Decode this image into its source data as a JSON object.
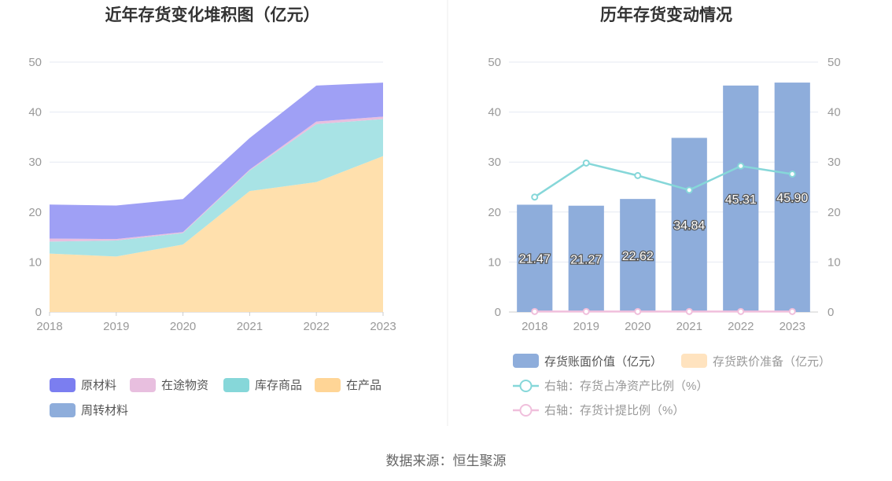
{
  "source_text": "数据来源：恒生聚源",
  "chart_data": [
    {
      "type": "area",
      "stacked": true,
      "title": "近年存货变化堆积图（亿元）",
      "categories": [
        "2018",
        "2019",
        "2020",
        "2021",
        "2022",
        "2023"
      ],
      "ylim": [
        0,
        50
      ],
      "yticks": [
        "0",
        "10",
        "20",
        "30",
        "40",
        "50"
      ],
      "grid": true,
      "legend_position": "bottom",
      "series": [
        {
          "name": "在产品",
          "color": "#ffe0ad",
          "values": [
            11.7,
            11.1,
            13.5,
            24.2,
            26.0,
            31.2
          ]
        },
        {
          "name": "库存商品",
          "color": "#a8e3e5",
          "values": [
            2.4,
            3.2,
            2.3,
            4.1,
            11.6,
            7.4
          ]
        },
        {
          "name": "在途物资",
          "color": "#e8bfdf",
          "values": [
            0.6,
            0.3,
            0.2,
            0.2,
            0.5,
            0.5
          ]
        },
        {
          "name": "原材料",
          "color": "#9fa0f5",
          "values": [
            6.8,
            6.7,
            6.6,
            6.3,
            7.2,
            6.8
          ]
        },
        {
          "name": "周转材料",
          "color": "#8eaddb",
          "values": [
            0,
            0,
            0,
            0,
            0,
            0
          ]
        }
      ],
      "legend": [
        {
          "name": "原材料",
          "color": "#7b7ef0"
        },
        {
          "name": "在途物资",
          "color": "#e8bfdf"
        },
        {
          "name": "库存商品",
          "color": "#86d7d9"
        },
        {
          "name": "在产品",
          "color": "#ffd596"
        },
        {
          "name": "周转材料",
          "color": "#8eaddb"
        }
      ]
    },
    {
      "type": "bar",
      "title": "历年存货变动情况",
      "categories": [
        "2018",
        "2019",
        "2020",
        "2021",
        "2022",
        "2023"
      ],
      "ylim": [
        0,
        50
      ],
      "yticks": [
        "0",
        "10",
        "20",
        "30",
        "40",
        "50"
      ],
      "y2lim": [
        0,
        50
      ],
      "y2ticks": [
        "0",
        "10",
        "20",
        "30",
        "40",
        "50"
      ],
      "grid": true,
      "legend_position": "bottom",
      "bars": {
        "name": "存货账面价值（亿元）",
        "color": "#8eaddb",
        "values": [
          21.47,
          21.27,
          22.62,
          34.84,
          45.31,
          45.9
        ],
        "labels": [
          "21.47",
          "21.27",
          "22.62",
          "34.84",
          "45.31",
          "45.90"
        ]
      },
      "bars2": {
        "name": "存货跌价准备（亿元）",
        "color": "#ffe3bf",
        "values": [
          0,
          0,
          0,
          0,
          0,
          0
        ]
      },
      "lines": [
        {
          "name": "右轴：存货占净资产比例（%）",
          "color": "#86d7d9",
          "axis": "right",
          "values": [
            23.0,
            29.8,
            27.3,
            24.4,
            29.2,
            27.6
          ]
        },
        {
          "name": "右轴：存货计提比例（%）",
          "color": "#f0bfdc",
          "axis": "right",
          "values": [
            0.1,
            0.1,
            0.1,
            0.1,
            0.1,
            0.1
          ]
        }
      ]
    }
  ]
}
